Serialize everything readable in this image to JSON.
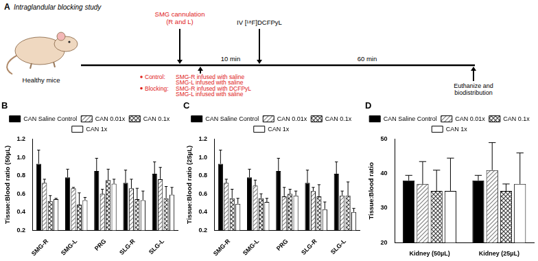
{
  "diagram": {
    "panel": "A",
    "title": "Intraglandular blocking study",
    "subject": "Healthy mice",
    "events": [
      {
        "label": [
          "SMG cannulation",
          "(R and L)"
        ]
      },
      {
        "label": [
          "IV [¹⁸F]DCFPyL"
        ]
      },
      {
        "label": [
          "Euthanize and",
          "biodistribution"
        ]
      }
    ],
    "intervals": [
      "10 min",
      "60 min"
    ],
    "conditions": [
      {
        "group": "Control:",
        "lines": [
          "SMG-R infused with saline",
          "SMG-L infused with saline"
        ]
      },
      {
        "group": "Blocking:",
        "lines": [
          "SMG-R infused with DCFPyL",
          "SMG-L infused with saline"
        ]
      }
    ]
  },
  "chart_data": [
    {
      "type": "bar",
      "title": "B",
      "y_label": "Tissue:Blood ratio (50µL)",
      "categories": [
        "SMG-R",
        "SMG-L",
        "PRG",
        "SLG-R",
        "SLG-L"
      ],
      "series": [
        {
          "name": "CAN Saline Control",
          "color": "#000000",
          "values": [
            0.93,
            0.78,
            0.85,
            0.72,
            0.82
          ],
          "errors": [
            0.15,
            0.09,
            0.14,
            0.14,
            0.13
          ]
        },
        {
          "name": "CAN 0.01x",
          "color": "#808080",
          "values": [
            0.72,
            0.66,
            0.6,
            0.66,
            0.76
          ],
          "errors": [
            0.04,
            0.01,
            0.05,
            0.1,
            0.13
          ]
        },
        {
          "name": "CAN 0.1x",
          "color": "#404040",
          "values": [
            0.52,
            0.48,
            0.75,
            0.54,
            0.55
          ],
          "errors": [
            0.06,
            0.13,
            0.12,
            0.12,
            0.13
          ]
        },
        {
          "name": "CAN 1x",
          "color": "#ffffff",
          "values": [
            0.54,
            0.53,
            0.71,
            0.53,
            0.59
          ],
          "errors": [
            0.01,
            0.03,
            0.05,
            0.1,
            0.08
          ]
        }
      ],
      "ylim": [
        0.2,
        1.2
      ],
      "yticks": [
        0.2,
        0.4,
        0.6,
        0.8,
        {
          "value": 1,
          "label": "1.0"
        },
        1.2
      ],
      "legend": "top",
      "grid": false
    },
    {
      "type": "bar",
      "title": "C",
      "y_label": "Tissue:Blood ratio (25µL)",
      "categories": [
        "SMG-R",
        "SMG-L",
        "PRG",
        "SLG-R",
        "SLG-L"
      ],
      "series": [
        {
          "name": "CAN Saline Control",
          "color": "#000000",
          "values": [
            0.93,
            0.78,
            0.85,
            0.72,
            0.82
          ],
          "errors": [
            0.15,
            0.09,
            0.14,
            0.14,
            0.13
          ]
        },
        {
          "name": "CAN 0.01x",
          "color": "#808080",
          "values": [
            0.72,
            0.69,
            0.57,
            0.63,
            0.58
          ],
          "errors": [
            0.04,
            0.06,
            0.1,
            0.04,
            0.05
          ]
        },
        {
          "name": "CAN 0.1x",
          "color": "#404040",
          "values": [
            0.55,
            0.55,
            0.6,
            0.57,
            0.58
          ],
          "errors": [
            0.1,
            0.05,
            0.05,
            0.13,
            0.15
          ]
        },
        {
          "name": "CAN 1x",
          "color": "#ffffff",
          "values": [
            0.49,
            0.51,
            0.58,
            0.43,
            0.4
          ],
          "errors": [
            0.06,
            0.04,
            0.05,
            0.08,
            0.04
          ]
        }
      ],
      "ylim": [
        0.2,
        1.2
      ],
      "yticks": [
        0.2,
        0.4,
        0.6,
        0.8,
        {
          "value": 1,
          "label": "1.0"
        },
        1.2
      ],
      "legend": "top",
      "grid": false
    },
    {
      "type": "bar",
      "title": "D",
      "y_label": "Tissue:Blood ratio",
      "categories": [
        "Kidney (50µL)",
        "Kidney (25µL)"
      ],
      "series": [
        {
          "name": "CAN Saline Control",
          "color": "#000000",
          "values": [
            38,
            38
          ],
          "errors": [
            1.5,
            1.5
          ]
        },
        {
          "name": "CAN 0.01x",
          "color": "#808080",
          "values": [
            37,
            41
          ],
          "errors": [
            6.5,
            8
          ]
        },
        {
          "name": "CAN 0.1x",
          "color": "#404040",
          "values": [
            35,
            35
          ],
          "errors": [
            6,
            2
          ]
        },
        {
          "name": "CAN 1x",
          "color": "#ffffff",
          "values": [
            35,
            37
          ],
          "errors": [
            9.5,
            9
          ]
        }
      ],
      "ylim": [
        20,
        50
      ],
      "yticks": [
        20,
        30,
        40,
        50
      ],
      "legend": "top",
      "grid": false
    }
  ]
}
